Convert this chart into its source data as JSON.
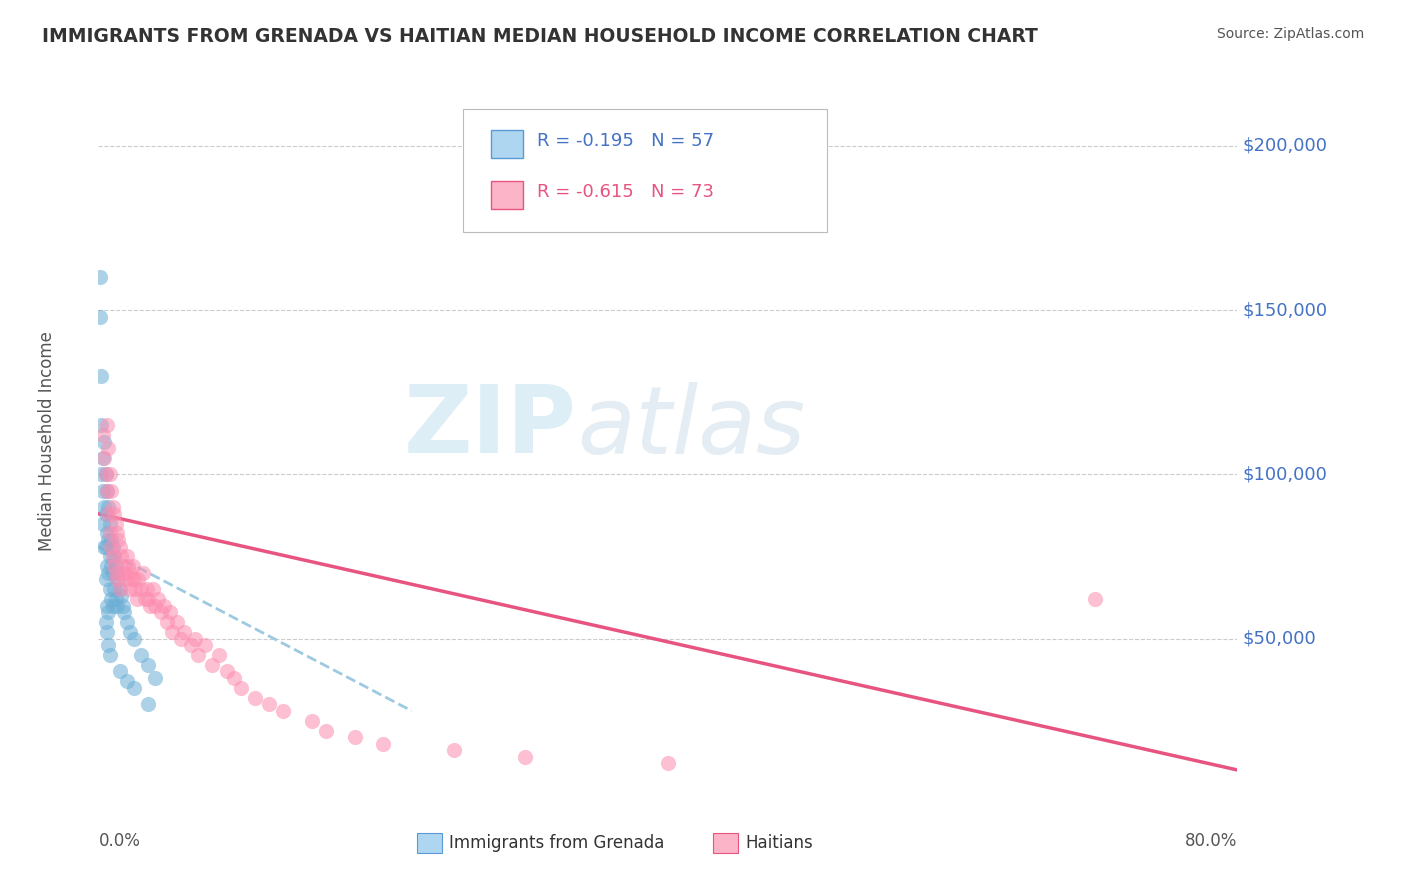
{
  "title": "IMMIGRANTS FROM GRENADA VS HAITIAN MEDIAN HOUSEHOLD INCOME CORRELATION CHART",
  "source": "Source: ZipAtlas.com",
  "ylabel": "Median Household Income",
  "watermark_zip": "ZIP",
  "watermark_atlas": "atlas",
  "legend_grenada_text": "R = -0.195   N = 57",
  "legend_haitian_text": "R = -0.615   N = 73",
  "legend_label_grenada": "Immigrants from Grenada",
  "legend_label_haitian": "Haitians",
  "ytick_vals": [
    50000,
    100000,
    150000,
    200000
  ],
  "ytick_labels": [
    "$50,000",
    "$100,000",
    "$150,000",
    "$200,000"
  ],
  "xlim": [
    0.0,
    0.8
  ],
  "ylim": [
    0,
    220000
  ],
  "background_color": "#ffffff",
  "dot_color_grenada": "#6baed6",
  "dot_color_haitian": "#fc8db0",
  "line_color_grenada": "#9ecae1",
  "line_color_haitian": "#e75480",
  "blue_text_color": "#4472c4",
  "pink_text_color": "#e75480",
  "title_color": "#333333",
  "grid_color": "#cccccc",
  "grenada_line_x0": 0.0,
  "grenada_line_x1": 0.22,
  "grenada_line_y0": 78000,
  "grenada_line_y1": 28000,
  "haitian_line_x0": 0.0,
  "haitian_line_x1": 0.8,
  "haitian_line_y0": 88000,
  "haitian_line_y1": 10000,
  "grenada_scatter_x": [
    0.001,
    0.001,
    0.002,
    0.002,
    0.002,
    0.003,
    0.003,
    0.003,
    0.004,
    0.004,
    0.004,
    0.005,
    0.005,
    0.005,
    0.005,
    0.006,
    0.006,
    0.006,
    0.006,
    0.007,
    0.007,
    0.007,
    0.007,
    0.008,
    0.008,
    0.008,
    0.009,
    0.009,
    0.009,
    0.01,
    0.01,
    0.01,
    0.011,
    0.011,
    0.012,
    0.012,
    0.013,
    0.013,
    0.014,
    0.015,
    0.016,
    0.017,
    0.018,
    0.02,
    0.022,
    0.025,
    0.03,
    0.035,
    0.04,
    0.005,
    0.006,
    0.007,
    0.008,
    0.015,
    0.02,
    0.025,
    0.035
  ],
  "grenada_scatter_y": [
    160000,
    148000,
    130000,
    115000,
    100000,
    105000,
    95000,
    85000,
    110000,
    90000,
    78000,
    100000,
    88000,
    78000,
    68000,
    95000,
    82000,
    72000,
    60000,
    90000,
    80000,
    70000,
    58000,
    85000,
    75000,
    65000,
    80000,
    72000,
    62000,
    78000,
    70000,
    60000,
    75000,
    65000,
    72000,
    62000,
    70000,
    60000,
    68000,
    65000,
    63000,
    60000,
    58000,
    55000,
    52000,
    50000,
    45000,
    42000,
    38000,
    55000,
    52000,
    48000,
    45000,
    40000,
    37000,
    35000,
    30000
  ],
  "haitian_scatter_x": [
    0.003,
    0.004,
    0.005,
    0.006,
    0.006,
    0.007,
    0.007,
    0.008,
    0.008,
    0.009,
    0.009,
    0.01,
    0.01,
    0.011,
    0.011,
    0.012,
    0.012,
    0.013,
    0.013,
    0.014,
    0.015,
    0.015,
    0.016,
    0.017,
    0.018,
    0.019,
    0.02,
    0.021,
    0.022,
    0.022,
    0.023,
    0.024,
    0.025,
    0.026,
    0.027,
    0.028,
    0.03,
    0.031,
    0.033,
    0.034,
    0.035,
    0.036,
    0.038,
    0.04,
    0.042,
    0.044,
    0.046,
    0.048,
    0.05,
    0.052,
    0.055,
    0.058,
    0.06,
    0.065,
    0.068,
    0.07,
    0.075,
    0.08,
    0.085,
    0.09,
    0.095,
    0.1,
    0.11,
    0.12,
    0.13,
    0.15,
    0.16,
    0.18,
    0.2,
    0.25,
    0.3,
    0.4,
    0.7
  ],
  "haitian_scatter_y": [
    112000,
    105000,
    100000,
    115000,
    95000,
    108000,
    88000,
    100000,
    82000,
    95000,
    78000,
    90000,
    75000,
    88000,
    72000,
    85000,
    70000,
    82000,
    68000,
    80000,
    78000,
    65000,
    75000,
    72000,
    70000,
    68000,
    75000,
    72000,
    70000,
    65000,
    68000,
    72000,
    68000,
    65000,
    62000,
    68000,
    65000,
    70000,
    62000,
    65000,
    62000,
    60000,
    65000,
    60000,
    62000,
    58000,
    60000,
    55000,
    58000,
    52000,
    55000,
    50000,
    52000,
    48000,
    50000,
    45000,
    48000,
    42000,
    45000,
    40000,
    38000,
    35000,
    32000,
    30000,
    28000,
    25000,
    22000,
    20000,
    18000,
    16000,
    14000,
    12000,
    62000
  ]
}
